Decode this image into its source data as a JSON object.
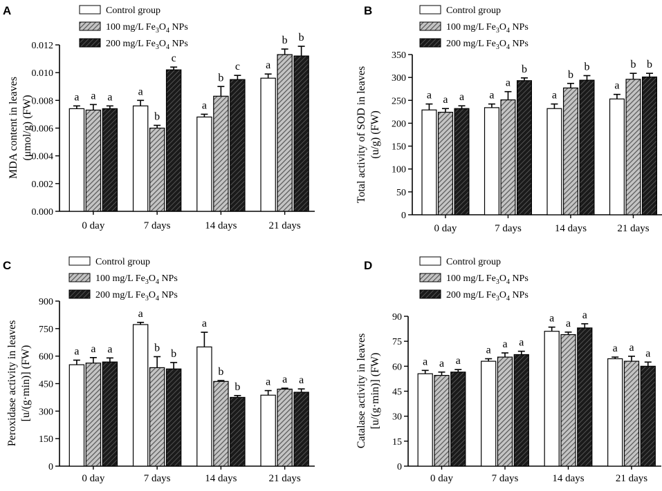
{
  "legend": {
    "control": "Control group",
    "t100_prefix": "100 mg/L Fe",
    "t200_prefix": "200 mg/L Fe",
    "sub3": "3",
    "o": "O",
    "sub4": "4",
    "suffix": " NPs"
  },
  "colors": {
    "control_fill": "#ffffff",
    "t100_fill": "#8c8c8c",
    "t200_fill": "#2b2b2b",
    "stroke": "#000000"
  },
  "chart_data": [
    {
      "id": "A",
      "letter": "A",
      "type": "bar",
      "ylabel_lines": [
        "MDA content in leaves",
        "(μmol/g) (FW)"
      ],
      "categories": [
        "0 day",
        "7 days",
        "14 days",
        "21 days"
      ],
      "ylim": [
        0,
        0.012
      ],
      "ticks": [
        "0.000",
        "0.002",
        "0.004",
        "0.006",
        "0.008",
        "0.010",
        "0.012"
      ],
      "series": [
        {
          "name": "Control group",
          "values": [
            0.0074,
            0.0076,
            0.0068,
            0.0096
          ],
          "errors": [
            0.0002,
            0.0004,
            0.0002,
            0.0003
          ],
          "letters": [
            "a",
            "a",
            "a",
            "a"
          ]
        },
        {
          "name": "100 mg/L Fe3O4 NPs",
          "values": [
            0.0073,
            0.006,
            0.0083,
            0.0113
          ],
          "errors": [
            0.0004,
            0.0002,
            0.0007,
            0.0004
          ],
          "letters": [
            "a",
            "b",
            "b",
            "b"
          ]
        },
        {
          "name": "200 mg/L Fe3O4 NPs",
          "values": [
            0.0074,
            0.0102,
            0.0095,
            0.0112
          ],
          "errors": [
            0.0002,
            0.0002,
            0.0003,
            0.0007
          ],
          "letters": [
            "a",
            "c",
            "c",
            "b"
          ]
        }
      ]
    },
    {
      "id": "B",
      "letter": "B",
      "type": "bar",
      "ylabel_lines": [
        "Total activity of SOD in leaves",
        "(u/g) (FW)"
      ],
      "categories": [
        "0 day",
        "7 days",
        "14 days",
        "21 days"
      ],
      "ylim": [
        0,
        350
      ],
      "ticks": [
        "0",
        "50",
        "100",
        "150",
        "200",
        "250",
        "300",
        "350"
      ],
      "series": [
        {
          "name": "Control group",
          "values": [
            229,
            234,
            232,
            253
          ],
          "errors": [
            13,
            8,
            10,
            10
          ],
          "letters": [
            "a",
            "a",
            "a",
            "a"
          ]
        },
        {
          "name": "100 mg/L Fe3O4 NPs",
          "values": [
            224,
            251,
            277,
            296
          ],
          "errors": [
            8,
            18,
            10,
            13
          ],
          "letters": [
            "a",
            "a",
            "b",
            "b"
          ]
        },
        {
          "name": "200 mg/L Fe3O4 NPs",
          "values": [
            232,
            293,
            294,
            301
          ],
          "errors": [
            6,
            6,
            10,
            8
          ],
          "letters": [
            "a",
            "b",
            "b",
            "b"
          ]
        }
      ]
    },
    {
      "id": "C",
      "letter": "C",
      "type": "bar",
      "ylabel_lines": [
        "Peroxidase activity in leaves",
        "[u/(g·min)] (FW)"
      ],
      "categories": [
        "0 day",
        "7 days",
        "14 days",
        "21 days"
      ],
      "ylim": [
        0,
        900
      ],
      "ticks": [
        "0",
        "150",
        "300",
        "450",
        "600",
        "750",
        "900"
      ],
      "series": [
        {
          "name": "Control group",
          "values": [
            553,
            772,
            650,
            387
          ],
          "errors": [
            25,
            12,
            80,
            25
          ],
          "letters": [
            "a",
            "a",
            "a",
            "a"
          ]
        },
        {
          "name": "100 mg/L Fe3O4 NPs",
          "values": [
            562,
            537,
            462,
            420
          ],
          "errors": [
            30,
            60,
            5,
            5
          ],
          "letters": [
            "a",
            "b",
            "b",
            "a"
          ]
        },
        {
          "name": "200 mg/L Fe3O4 NPs",
          "values": [
            568,
            530,
            375,
            403
          ],
          "errors": [
            22,
            35,
            10,
            18
          ],
          "letters": [
            "a",
            "b",
            "b",
            "a"
          ]
        }
      ]
    },
    {
      "id": "D",
      "letter": "D",
      "type": "bar",
      "ylabel_lines": [
        "Catalase activity in leaves",
        "[u/(g·min)] (FW)"
      ],
      "categories": [
        "0 day",
        "7 days",
        "14 days",
        "21 days"
      ],
      "ylim": [
        0,
        90
      ],
      "ticks": [
        "0",
        "15",
        "30",
        "45",
        "60",
        "75",
        "90"
      ],
      "series": [
        {
          "name": "Control group",
          "values": [
            55.5,
            63,
            81,
            64.5
          ],
          "errors": [
            2,
            1.5,
            2.5,
            1
          ],
          "letters": [
            "a",
            "a",
            "a",
            "a"
          ]
        },
        {
          "name": "100 mg/L Fe3O4 NPs",
          "values": [
            54.5,
            65.5,
            79,
            63
          ],
          "errors": [
            2,
            2.5,
            1.5,
            3
          ],
          "letters": [
            "a",
            "a",
            "a",
            "a"
          ]
        },
        {
          "name": "200 mg/L Fe3O4 NPs",
          "values": [
            56.5,
            67,
            83,
            60
          ],
          "errors": [
            1.5,
            2,
            2.5,
            2.5
          ],
          "letters": [
            "a",
            "a",
            "a",
            "a"
          ]
        }
      ]
    }
  ]
}
